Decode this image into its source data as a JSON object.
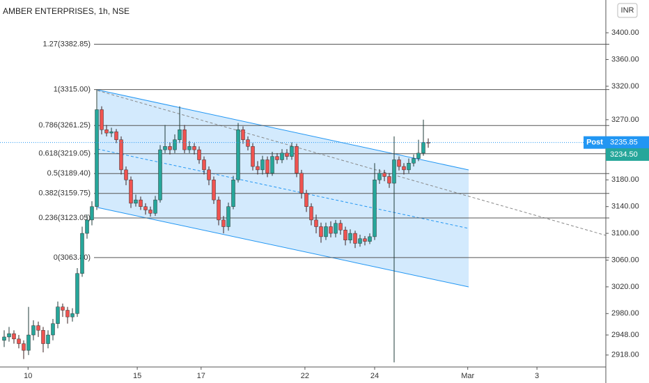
{
  "chart_data": {
    "type": "candlestick",
    "title": "AMBER ENTERPRISES, 1h, NSE",
    "currency": "INR",
    "up_color": "#26a69a",
    "down_color": "#ef5350",
    "open": [
      2940,
      2945,
      2950,
      2942,
      2935,
      2925,
      2948,
      2962,
      2955,
      2935,
      2948,
      2965,
      2990,
      2985,
      2975,
      2980,
      3040,
      3100,
      3120,
      3140,
      3285,
      3255,
      3250,
      3252,
      3240,
      3195,
      3180,
      3145,
      3150,
      3140,
      3135,
      3130,
      3150,
      3225,
      3230,
      3225,
      3240,
      3255,
      3225,
      3230,
      3225,
      3210,
      3195,
      3180,
      3150,
      3120,
      3110,
      3140,
      3180,
      3255,
      3240,
      3230,
      3200,
      3195,
      3210,
      3190,
      3215,
      3210,
      3220,
      3215,
      3230,
      3190,
      3160,
      3140,
      3120,
      3110,
      3095,
      3110,
      3100,
      3115,
      3105,
      3090,
      3100,
      3085,
      3092,
      3088,
      3095,
      3180,
      3190,
      3185,
      3175,
      3210,
      3200,
      3195,
      3205,
      3212,
      3220,
      3236
    ],
    "high": [
      2955,
      2960,
      2955,
      2948,
      2940,
      2990,
      2970,
      2968,
      2960,
      2955,
      2972,
      2998,
      2995,
      2990,
      2988,
      3048,
      3110,
      3128,
      3148,
      3315,
      3290,
      3262,
      3258,
      3256,
      3245,
      3200,
      3185,
      3158,
      3155,
      3145,
      3140,
      3156,
      3232,
      3262,
      3236,
      3248,
      3290,
      3262,
      3238,
      3235,
      3230,
      3215,
      3200,
      3185,
      3155,
      3126,
      3146,
      3186,
      3265,
      3260,
      3245,
      3235,
      3208,
      3216,
      3215,
      3222,
      3220,
      3226,
      3226,
      3236,
      3234,
      3195,
      3165,
      3145,
      3128,
      3116,
      3116,
      3118,
      3120,
      3120,
      3110,
      3106,
      3104,
      3098,
      3096,
      3100,
      3205,
      3196,
      3195,
      3190,
      3245,
      3215,
      3205,
      3212,
      3218,
      3240,
      3270,
      3242
    ],
    "low": [
      2930,
      2938,
      2935,
      2928,
      2912,
      2918,
      2940,
      2945,
      2922,
      2928,
      2940,
      2958,
      2975,
      2965,
      2968,
      2975,
      3035,
      3092,
      3112,
      3135,
      3248,
      3245,
      3244,
      3235,
      3188,
      3172,
      3138,
      3140,
      3135,
      3128,
      3125,
      3126,
      3146,
      3220,
      3218,
      3220,
      3235,
      3220,
      3220,
      3218,
      3204,
      3188,
      3172,
      3144,
      3112,
      3100,
      3104,
      3136,
      3176,
      3234,
      3224,
      3194,
      3188,
      3188,
      3184,
      3186,
      3204,
      3205,
      3210,
      3210,
      3184,
      3152,
      3132,
      3112,
      3100,
      3086,
      3090,
      3094,
      3094,
      3098,
      3082,
      3085,
      3078,
      3080,
      3082,
      3084,
      3090,
      3174,
      3178,
      3168,
      2907,
      3194,
      3188,
      3190,
      3200,
      3208,
      3216,
      3228
    ],
    "close": [
      2945,
      2950,
      2942,
      2935,
      2925,
      2948,
      2962,
      2955,
      2935,
      2948,
      2965,
      2990,
      2985,
      2975,
      2980,
      3040,
      3100,
      3120,
      3140,
      3285,
      3255,
      3250,
      3252,
      3240,
      3195,
      3180,
      3145,
      3150,
      3140,
      3135,
      3130,
      3150,
      3225,
      3230,
      3225,
      3240,
      3255,
      3225,
      3230,
      3225,
      3210,
      3195,
      3180,
      3150,
      3120,
      3110,
      3140,
      3180,
      3255,
      3240,
      3230,
      3200,
      3195,
      3210,
      3190,
      3215,
      3210,
      3220,
      3215,
      3230,
      3190,
      3160,
      3140,
      3120,
      3110,
      3095,
      3110,
      3100,
      3115,
      3105,
      3090,
      3100,
      3085,
      3092,
      3088,
      3095,
      3180,
      3190,
      3185,
      3175,
      3210,
      3200,
      3195,
      3205,
      3212,
      3220,
      3236,
      3235.85
    ],
    "xlim": [
      -0.857,
      123.43
    ],
    "xticks": [
      {
        "value": 4.9,
        "label": "10"
      },
      {
        "value": 27.3,
        "label": "15"
      },
      {
        "value": 40.4,
        "label": "17"
      },
      {
        "value": 61.7,
        "label": "22"
      },
      {
        "value": 76,
        "label": "24"
      },
      {
        "value": 95.1,
        "label": "Mar"
      },
      {
        "value": 109.3,
        "label": "3"
      }
    ],
    "ylim": [
      2897,
      3449
    ],
    "yticks": [
      {
        "value": 3400,
        "label": "3400.00"
      },
      {
        "value": 3360,
        "label": "3360.00"
      },
      {
        "value": 3320,
        "label": "3320.00"
      },
      {
        "value": 3270,
        "label": "3270.00"
      },
      {
        "value": 3180,
        "label": "3180.00"
      },
      {
        "value": 3140,
        "label": "3140.00"
      },
      {
        "value": 3100,
        "label": "3100.00"
      },
      {
        "value": 3060,
        "label": "3060.00"
      },
      {
        "value": 3020,
        "label": "3020.00"
      },
      {
        "value": 2980,
        "label": "2980.00"
      },
      {
        "value": 2948,
        "label": "2948.00"
      },
      {
        "value": 2918,
        "label": "2918.00"
      }
    ],
    "fib_levels": [
      {
        "label": "1.27(3382.85)",
        "value": 3382.85
      },
      {
        "label": "1(3315.00)",
        "value": 3315
      },
      {
        "label": "0.786(3261.25)",
        "value": 3261.25
      },
      {
        "label": "0.618(3219.05)",
        "value": 3219.05
      },
      {
        "label": "0.5(3189.40)",
        "value": 3189.4
      },
      {
        "label": "0.382(3159.75)",
        "value": 3159.75
      },
      {
        "label": "0.236(3123.05)",
        "value": 3123.05
      },
      {
        "label": "0(3063.80)",
        "value": 3063.8
      }
    ],
    "post_label": {
      "name": "Post",
      "value": 3235.85,
      "color": "#2196f3"
    },
    "last_price": {
      "value": 3234.5,
      "label": "3234.50",
      "color": "#26a69a"
    }
  }
}
